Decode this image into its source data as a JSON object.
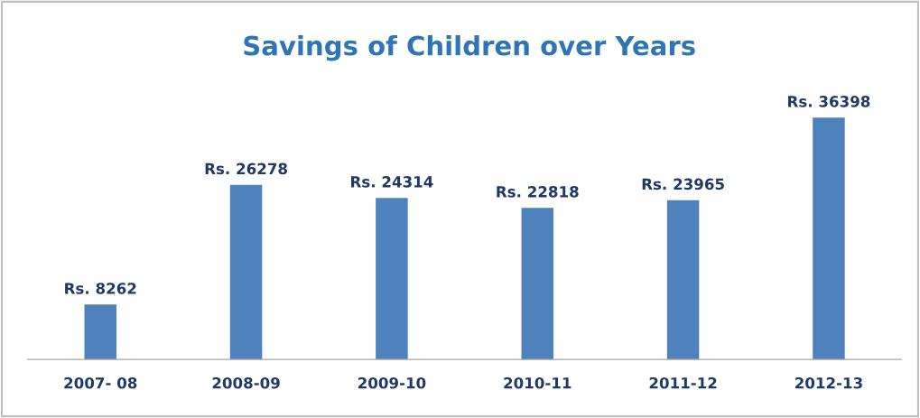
{
  "chart_data": {
    "type": "bar",
    "title": "Savings of Children over Years",
    "categories": [
      "2007- 08",
      "2008-09",
      "2009-10",
      "2010-11",
      "2011-12",
      "2012-13"
    ],
    "values": [
      8262,
      26278,
      24314,
      22818,
      23965,
      36398
    ],
    "value_labels": [
      "Rs. 8262",
      "Rs. 26278",
      "Rs. 24314",
      "Rs. 22818",
      "Rs. 23965",
      "Rs. 36398"
    ],
    "color": "#4f81bd",
    "grid": false,
    "legend": false
  }
}
